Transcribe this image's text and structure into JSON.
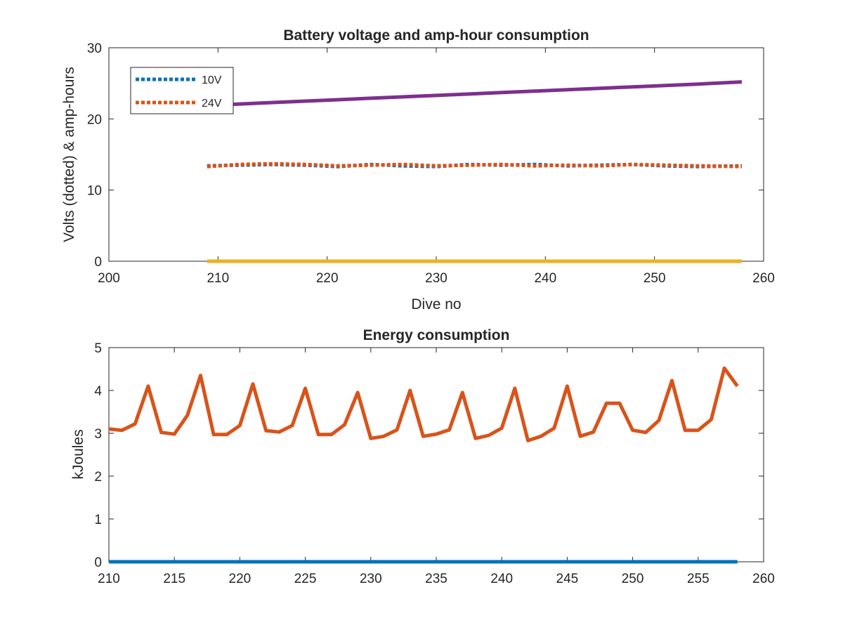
{
  "chart_data": [
    {
      "type": "line",
      "title": "Battery voltage and amp-hour consumption",
      "xlabel": "Dive no",
      "ylabel": "Volts (dotted) & amp-hours",
      "xlim": [
        200,
        260
      ],
      "ylim": [
        0,
        30
      ],
      "xticks": [
        "200",
        "210",
        "220",
        "230",
        "240",
        "250",
        "260"
      ],
      "yticks": [
        "0",
        "10",
        "20",
        "30"
      ],
      "grid": false,
      "legend_position": "top-left",
      "x": [
        209,
        212,
        215,
        218,
        221,
        224,
        227,
        230,
        233,
        236,
        239,
        242,
        245,
        248,
        251,
        254,
        258
      ],
      "series": [
        {
          "name": "10V",
          "style": "dotted",
          "color": "#0072BD",
          "values": [
            13.4,
            13.5,
            13.6,
            13.5,
            13.3,
            13.6,
            13.4,
            13.3,
            13.6,
            13.5,
            13.6,
            13.4,
            13.5,
            13.6,
            13.4,
            13.3,
            13.4
          ]
        },
        {
          "name": "24V",
          "style": "dotted",
          "color": "#D95319",
          "values": [
            13.3,
            13.6,
            13.7,
            13.6,
            13.4,
            13.5,
            13.6,
            13.4,
            13.5,
            13.6,
            13.4,
            13.5,
            13.4,
            13.6,
            13.5,
            13.4,
            13.3
          ]
        },
        {
          "style": "solid",
          "color": "#EDB120",
          "values": [
            0,
            0,
            0,
            0,
            0,
            0,
            0,
            0,
            0,
            0,
            0,
            0,
            0,
            0,
            0,
            0,
            0
          ]
        },
        {
          "style": "solid",
          "color": "#7E2F8E",
          "values": [
            21.9,
            22.1,
            22.3,
            22.5,
            22.7,
            22.9,
            23.1,
            23.3,
            23.5,
            23.7,
            23.9,
            24.1,
            24.3,
            24.5,
            24.7,
            24.9,
            25.2
          ]
        }
      ]
    },
    {
      "type": "line",
      "title": "Energy consumption",
      "xlabel": "",
      "ylabel": "kJoules",
      "xlim": [
        210,
        260
      ],
      "ylim": [
        0,
        5
      ],
      "xticks": [
        "210",
        "215",
        "220",
        "225",
        "230",
        "235",
        "240",
        "245",
        "250",
        "255",
        "260"
      ],
      "yticks": [
        "0",
        "1",
        "2",
        "3",
        "4",
        "5"
      ],
      "grid": false,
      "x": [
        210,
        211,
        212,
        213,
        214,
        215,
        216,
        217,
        218,
        219,
        220,
        221,
        222,
        223,
        224,
        225,
        226,
        227,
        228,
        229,
        230,
        231,
        232,
        233,
        234,
        235,
        236,
        237,
        238,
        239,
        240,
        241,
        242,
        243,
        244,
        245,
        246,
        247,
        248,
        249,
        250,
        251,
        252,
        253,
        254,
        255,
        256,
        257,
        258
      ],
      "series": [
        {
          "style": "solid",
          "color": "#0072BD",
          "values": [
            0,
            0,
            0,
            0,
            0,
            0,
            0,
            0,
            0,
            0,
            0,
            0,
            0,
            0,
            0,
            0,
            0,
            0,
            0,
            0,
            0,
            0,
            0,
            0,
            0,
            0,
            0,
            0,
            0,
            0,
            0,
            0,
            0,
            0,
            0,
            0,
            0,
            0,
            0,
            0,
            0,
            0,
            0,
            0,
            0,
            0,
            0,
            0,
            0
          ]
        },
        {
          "style": "solid",
          "color": "#D95319",
          "values": [
            3.1,
            3.07,
            3.22,
            4.1,
            3.02,
            2.98,
            3.42,
            4.35,
            2.97,
            2.97,
            3.18,
            4.15,
            3.06,
            3.03,
            3.18,
            4.05,
            2.97,
            2.97,
            3.2,
            3.95,
            2.88,
            2.93,
            3.08,
            4.0,
            2.93,
            2.98,
            3.08,
            3.95,
            2.88,
            2.95,
            3.12,
            4.05,
            2.83,
            2.93,
            3.12,
            4.1,
            2.93,
            3.03,
            3.7,
            3.7,
            3.07,
            3.02,
            3.3,
            4.23,
            3.07,
            3.07,
            3.32,
            4.52,
            4.1
          ]
        }
      ]
    }
  ]
}
